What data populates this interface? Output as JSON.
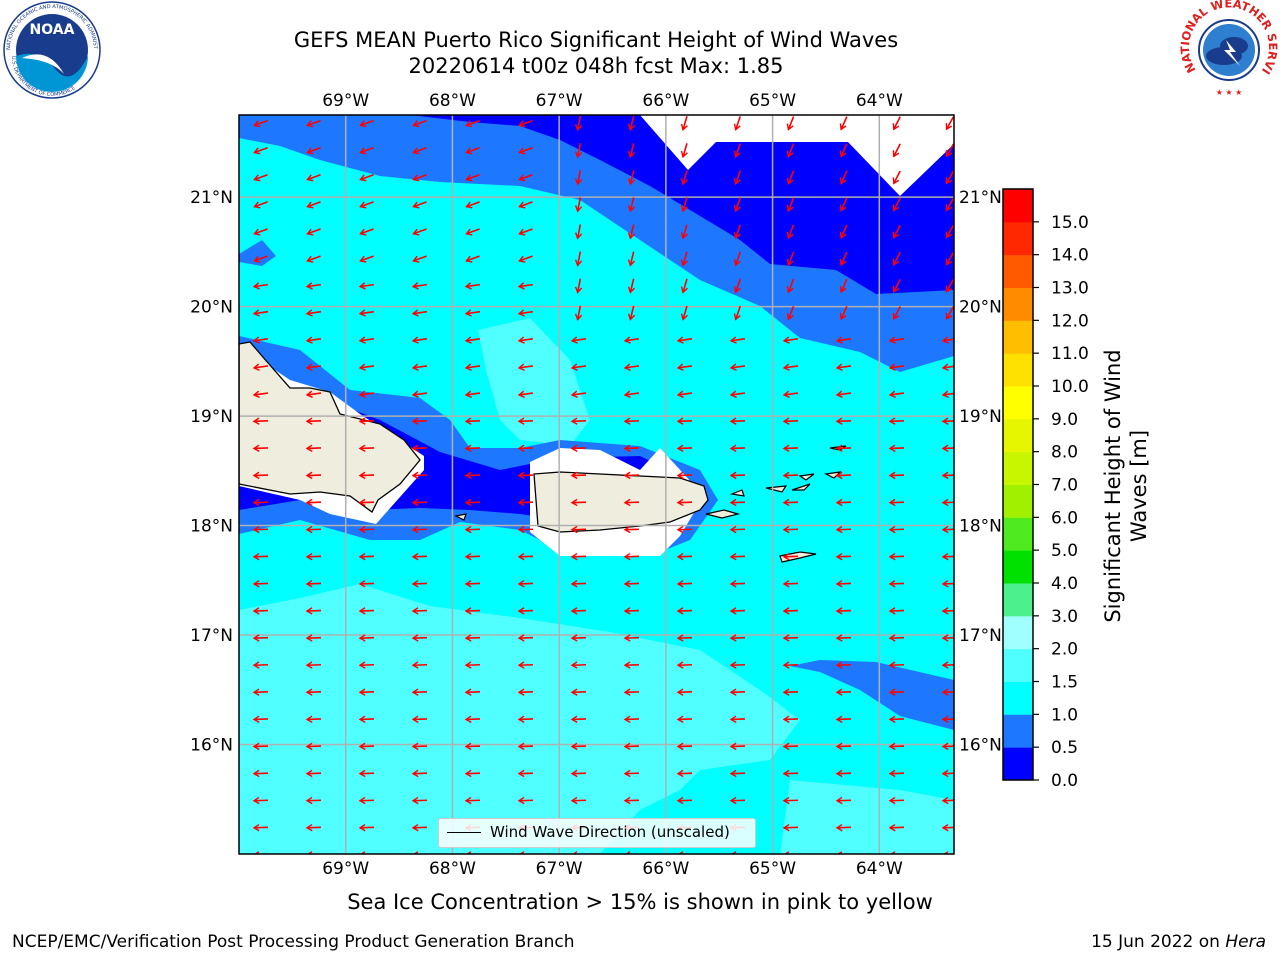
{
  "title": {
    "line1": "GEFS MEAN Puerto Rico Significant Height of Wind Waves",
    "line2": "20220614 t00z 048h fcst   Max: 1.85"
  },
  "logos": {
    "left": "NOAA",
    "left_ring": "NATIONAL OCEANIC AND ATMOSPHERIC ADMINISTRATION",
    "left_ring_bottom": "U.S. DEPARTMENT OF COMMERCE",
    "right_ring": "NATIONAL WEATHER SERVICE"
  },
  "map": {
    "lon_labels": [
      "69°W",
      "68°W",
      "67°W",
      "66°W",
      "65°W",
      "64°W"
    ],
    "lat_labels": [
      "21°N",
      "20°N",
      "19°N",
      "18°N",
      "17°N",
      "16°N"
    ],
    "lon_values": [
      -69,
      -68,
      -67,
      -66,
      -65,
      -64
    ],
    "lat_values": [
      21,
      20,
      19,
      18,
      17,
      16
    ],
    "extent": {
      "lon_min": -70.0,
      "lon_max": -63.3,
      "lat_min": 15.0,
      "lat_max": 21.75
    },
    "legend_label": "Wind Wave Direction (unscaled)",
    "arrow_color": "#ff0000",
    "land_color": "#efedde",
    "grid_color": "#b0b0b0"
  },
  "colorbar": {
    "label_line1": "Significant Height of Wind",
    "label_line2": "Waves [m]",
    "ticks": [
      "0.0",
      "0.5",
      "1.0",
      "1.5",
      "2.0",
      "3.0",
      "4.0",
      "5.0",
      "6.0",
      "7.0",
      "8.0",
      "9.0",
      "10.0",
      "11.0",
      "12.0",
      "13.0",
      "14.0",
      "15.0"
    ],
    "colors": [
      "#0000ff",
      "#1e78ff",
      "#00ffff",
      "#50ffff",
      "#a0ffff",
      "#4cf08c",
      "#00e100",
      "#50eb1e",
      "#a0f000",
      "#c8f500",
      "#e6f500",
      "#ffff00",
      "#ffe100",
      "#ffbe00",
      "#ff8c00",
      "#ff5a00",
      "#ff2800",
      "#ff0000"
    ]
  },
  "note": "Sea Ice Concentration > 15% is shown in pink to yellow",
  "footer": {
    "left": "NCEP/EMC/Verification Post Processing Product Generation Branch",
    "right_prefix": "15 Jun 2022 on ",
    "right_italic": "Hera"
  }
}
